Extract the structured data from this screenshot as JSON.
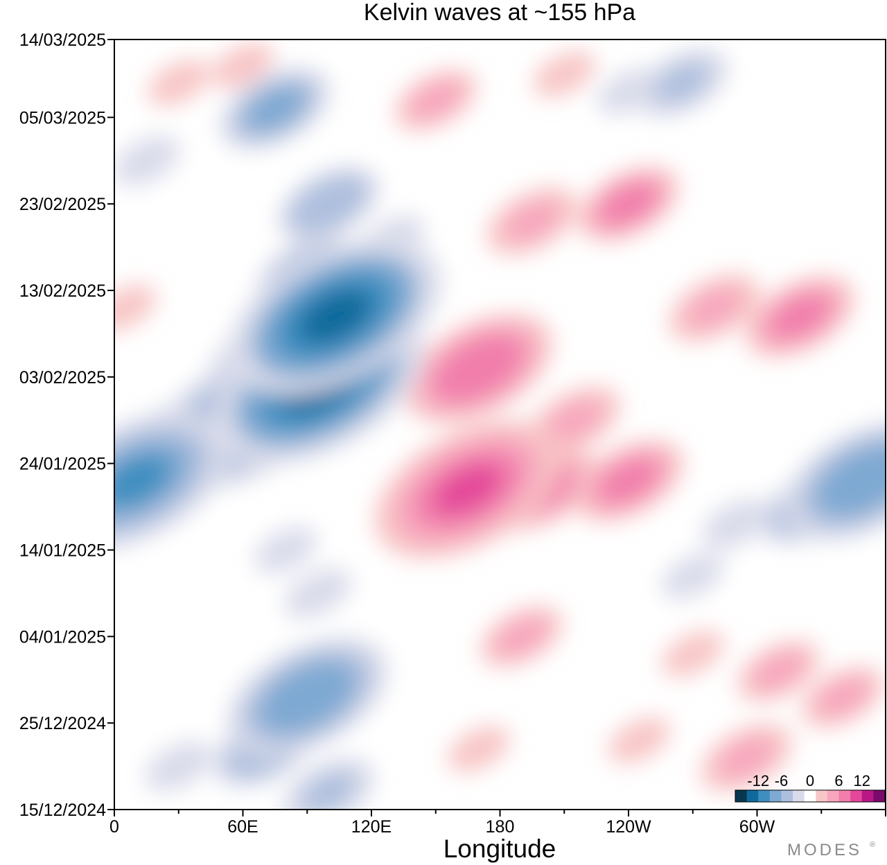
{
  "chart_data": {
    "type": "heatmap",
    "title": "Kelvin waves at ~155 hPa",
    "xlabel": "Longitude",
    "ylabel": "",
    "x_ticks": [
      "0",
      "60E",
      "120E",
      "180",
      "120W",
      "60W"
    ],
    "x_tick_values": [
      0,
      60,
      120,
      180,
      240,
      300
    ],
    "xlim": [
      0,
      360
    ],
    "y_ticks": [
      "14/03/2025",
      "05/03/2025",
      "23/02/2025",
      "13/02/2025",
      "03/02/2025",
      "24/01/2025",
      "14/01/2025",
      "04/01/2025",
      "25/12/2024",
      "15/12/2024"
    ],
    "y_tick_days": [
      89,
      80,
      70,
      60,
      50,
      40,
      30,
      20,
      10,
      0
    ],
    "ylim": [
      0,
      89
    ],
    "colorbar": {
      "labels": [
        "-12",
        "-6",
        "0",
        "6",
        "12"
      ],
      "label_values": [
        -12,
        -6,
        0,
        6,
        12
      ],
      "levels": [
        -15,
        -12,
        -9,
        -6,
        -4,
        -2,
        2,
        4,
        6,
        9,
        12,
        15
      ],
      "colors": [
        "#08374f",
        "#0f6a9b",
        "#3e8ec0",
        "#7ea9d2",
        "#aebfde",
        "#d9dbea",
        "#ffffff",
        "#f8c6c6",
        "#f7a6bd",
        "#f17eab",
        "#e4489a",
        "#b81885",
        "#7a0a6c"
      ]
    },
    "anomalies": [
      {
        "lon": 95,
        "day": 49,
        "value": -13
      },
      {
        "lon": 60,
        "day": 45,
        "value": -11
      },
      {
        "lon": 103,
        "day": 57,
        "value": -13
      },
      {
        "lon": 10,
        "day": 38,
        "value": -11
      },
      {
        "lon": 30,
        "day": 41,
        "value": -9
      },
      {
        "lon": 80,
        "day": 52,
        "value": -9
      },
      {
        "lon": 90,
        "day": 62,
        "value": -6
      },
      {
        "lon": 100,
        "day": 70,
        "value": -6
      },
      {
        "lon": 75,
        "day": 81,
        "value": -7
      },
      {
        "lon": 15,
        "day": 75,
        "value": -4
      },
      {
        "lon": 90,
        "day": 13,
        "value": -9
      },
      {
        "lon": 70,
        "day": 7,
        "value": -6
      },
      {
        "lon": 30,
        "day": 5,
        "value": -4
      },
      {
        "lon": 95,
        "day": 25,
        "value": -4
      },
      {
        "lon": 80,
        "day": 30,
        "value": -3
      },
      {
        "lon": 100,
        "day": 2,
        "value": -5
      },
      {
        "lon": 350,
        "day": 38,
        "value": -9
      },
      {
        "lon": 325,
        "day": 35,
        "value": -6
      },
      {
        "lon": 290,
        "day": 33,
        "value": -4
      },
      {
        "lon": 270,
        "day": 27,
        "value": -3
      },
      {
        "lon": 265,
        "day": 84,
        "value": -5
      },
      {
        "lon": 240,
        "day": 83,
        "value": -3
      },
      {
        "lon": 130,
        "day": 66,
        "value": -3
      },
      {
        "lon": 165,
        "day": 37,
        "value": 11
      },
      {
        "lon": 200,
        "day": 37,
        "value": 7
      },
      {
        "lon": 240,
        "day": 38,
        "value": 7
      },
      {
        "lon": 170,
        "day": 51,
        "value": 8
      },
      {
        "lon": 215,
        "day": 45,
        "value": 5
      },
      {
        "lon": 195,
        "day": 68,
        "value": 5
      },
      {
        "lon": 240,
        "day": 70,
        "value": 6
      },
      {
        "lon": 320,
        "day": 57,
        "value": 7
      },
      {
        "lon": 280,
        "day": 58,
        "value": 5
      },
      {
        "lon": 150,
        "day": 82,
        "value": 4
      },
      {
        "lon": 210,
        "day": 85,
        "value": 3
      },
      {
        "lon": 190,
        "day": 20,
        "value": 4
      },
      {
        "lon": 170,
        "day": 7,
        "value": 3
      },
      {
        "lon": 245,
        "day": 8,
        "value": 3
      },
      {
        "lon": 295,
        "day": 6,
        "value": 5
      },
      {
        "lon": 310,
        "day": 16,
        "value": 4
      },
      {
        "lon": 340,
        "day": 13,
        "value": 4
      },
      {
        "lon": 270,
        "day": 18,
        "value": 3
      },
      {
        "lon": 30,
        "day": 84,
        "value": 3
      },
      {
        "lon": 60,
        "day": 86,
        "value": 3
      },
      {
        "lon": 5,
        "day": 58,
        "value": 3
      }
    ]
  },
  "brand": "MODES",
  "brand_mark": "®"
}
